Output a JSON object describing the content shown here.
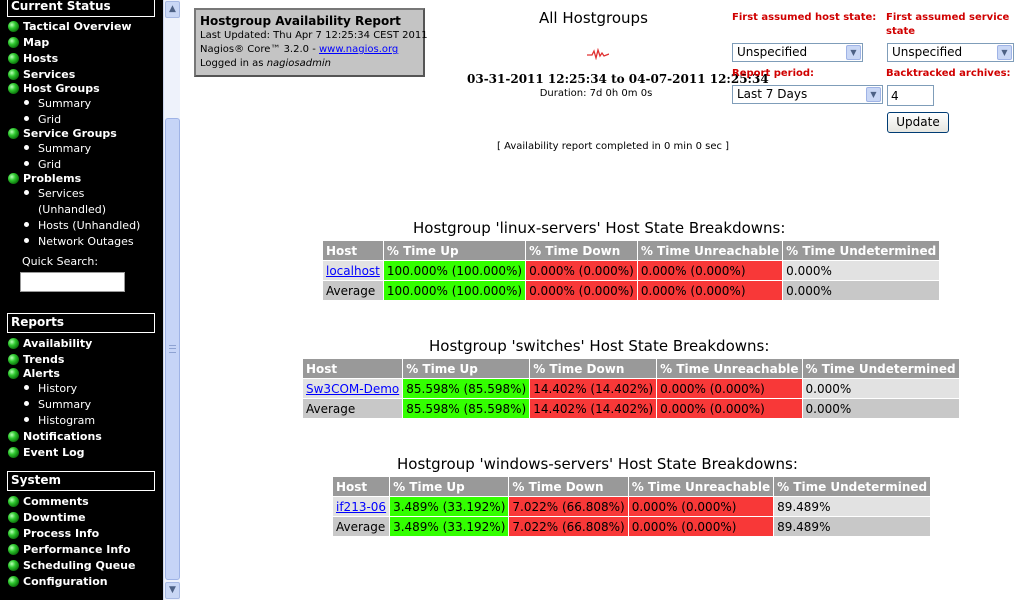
{
  "sidebar": {
    "current_status": {
      "header": "Current Status",
      "items": [
        "Tactical Overview",
        "Map",
        "Hosts",
        "Services"
      ],
      "host_groups": {
        "label": "Host Groups",
        "subs": [
          "Summary",
          "Grid"
        ]
      },
      "service_groups": {
        "label": "Service Groups",
        "subs": [
          "Summary",
          "Grid"
        ]
      },
      "problems": {
        "label": "Problems",
        "services": "Services",
        "services_unhandled": "(Unhandled)",
        "hosts_unhandled": "Hosts (Unhandled)",
        "network_outages": "Network Outages"
      },
      "quick_search_label": "Quick Search:",
      "quick_search_value": ""
    },
    "reports": {
      "header": "Reports",
      "items": [
        "Availability",
        "Trends",
        "Alerts"
      ],
      "alert_subs": [
        "History",
        "Summary",
        "Histogram"
      ],
      "items2": [
        "Notifications",
        "Event Log"
      ]
    },
    "system": {
      "header": "System",
      "items": [
        "Comments",
        "Downtime",
        "Process Info",
        "Performance Info",
        "Scheduling Queue",
        "Configuration"
      ]
    },
    "bullet_color": "#1a9a1a"
  },
  "scrollbar": {
    "up_icon": "▲",
    "down_icon": "▼"
  },
  "info": {
    "title": "Hostgroup Availability Report",
    "last_updated": "Last Updated: Thu Apr 7 12:25:34 CEST 2011",
    "version_prefix": "Nagios® Core™ 3.2.0 - ",
    "link": "www.nagios.org",
    "logged_in_prefix": "Logged in as ",
    "user": "nagiosadmin"
  },
  "report": {
    "title": "All Hostgroups",
    "range": "03-31-2011 12:25:34 to 04-07-2011 12:25:34",
    "duration": "Duration: 7d 0h 0m 0s",
    "completed": "[ Availability report completed in 0 min 0 sec ]"
  },
  "options": {
    "first_host_state_label": "First assumed host state:",
    "first_host_state_value": "Unspecified",
    "first_service_state_label": "First assumed service state",
    "first_service_state_value": "Unspecified",
    "report_period_label": "Report period:",
    "report_period_value": "Last 7 Days",
    "backtracked_label": "Backtracked archives:",
    "backtracked_value": "4",
    "update_label": "Update",
    "dropdown_icon": "▼"
  },
  "columns": [
    "Host",
    "% Time Up",
    "% Time Down",
    "% Time Unreachable",
    "% Time Undetermined"
  ],
  "groups": [
    {
      "title": "Hostgroup 'linux-servers' Host State Breakdowns:",
      "rows": [
        {
          "host": "localhost",
          "up": "100.000% (100.000%)",
          "down": "0.000% (0.000%)",
          "unreach": "0.000% (0.000%)",
          "undet": "0.000%"
        },
        {
          "host": "Average",
          "up": "100.000% (100.000%)",
          "down": "0.000% (0.000%)",
          "unreach": "0.000% (0.000%)",
          "undet": "0.000%"
        }
      ]
    },
    {
      "title": "Hostgroup 'switches' Host State Breakdowns:",
      "rows": [
        {
          "host": "Sw3COM-Demo",
          "up": "85.598% (85.598%)",
          "down": "14.402% (14.402%)",
          "unreach": "0.000% (0.000%)",
          "undet": "0.000%"
        },
        {
          "host": "Average",
          "up": "85.598% (85.598%)",
          "down": "14.402% (14.402%)",
          "unreach": "0.000% (0.000%)",
          "undet": "0.000%"
        }
      ]
    },
    {
      "title": "Hostgroup 'windows-servers' Host State Breakdowns:",
      "rows": [
        {
          "host": "if213-06",
          "up": "3.489% (33.192%)",
          "down": "7.022% (66.808%)",
          "unreach": "0.000% (0.000%)",
          "undet": "89.489%"
        },
        {
          "host": "Average",
          "up": "3.489% (33.192%)",
          "down": "7.022% (66.808%)",
          "unreach": "0.000% (0.000%)",
          "undet": "89.489%"
        }
      ]
    }
  ],
  "colors": {
    "up": "#33ff00",
    "down": "#f83838",
    "unreachable": "#f83838",
    "header_bg": "#999999",
    "option_label": "#d00000"
  }
}
